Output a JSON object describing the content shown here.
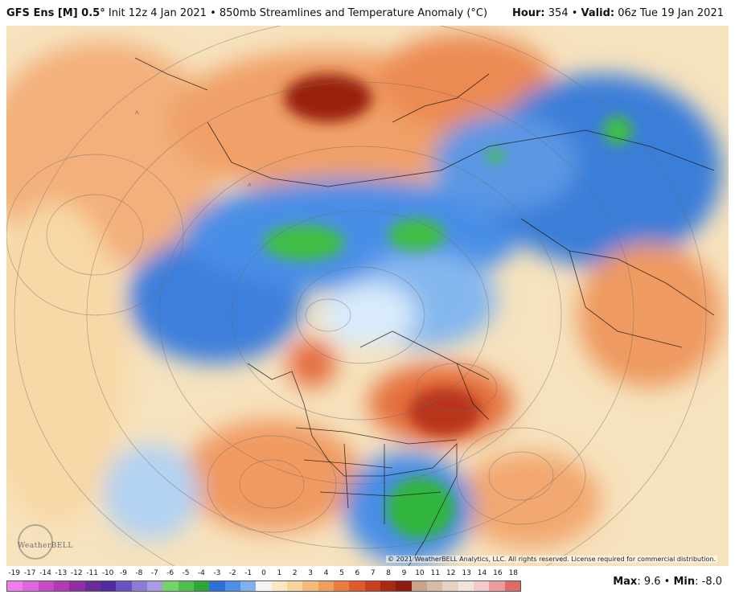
{
  "header": {
    "model": "GFS Ens [M] 0.5°",
    "init": "Init 12z 4 Jan 2021",
    "field": "850mb Streamlines and Temperature Anomaly (°C)",
    "hour_label": "Hour:",
    "hour_value": "354",
    "valid_label": "Valid:",
    "valid_value": "06z Tue 19 Jan 2021"
  },
  "map": {
    "copyright": "© 2021 WeatherBELL Analytics, LLC. All rights reserved. License required for commercial distribution.",
    "logo_text": "WeatherBELL"
  },
  "legend": {
    "ticks": [
      "-19",
      "-17",
      "-14",
      "-13",
      "-12",
      "-11",
      "-10",
      "-9",
      "-8",
      "-7",
      "-6",
      "-5",
      "-4",
      "-3",
      "-2",
      "-1",
      "0",
      "1",
      "2",
      "3",
      "4",
      "5",
      "6",
      "7",
      "8",
      "9",
      "10",
      "11",
      "12",
      "13",
      "14",
      "16",
      "18"
    ],
    "colors": [
      "#f07cf0",
      "#e066e0",
      "#c94ac9",
      "#b13bb6",
      "#8f2fa3",
      "#6a2a98",
      "#4f2aa0",
      "#6a52c4",
      "#8c7ad6",
      "#a99be0",
      "#74d36a",
      "#4cc04a",
      "#2ea53a",
      "#2e6fd8",
      "#4d8ee6",
      "#7eb1ee",
      "#f4f4f4",
      "#fbe8c2",
      "#f8d59c",
      "#f6bb7a",
      "#f29d5a",
      "#ec7c3e",
      "#e05a2a",
      "#c8401e",
      "#a92a14",
      "#8a1d0e",
      "#c9a48a",
      "#d8bba4",
      "#e7d2c2",
      "#f2e4d8",
      "#f5c9c9",
      "#ee9b9b",
      "#e06a6a"
    ],
    "max_label": "Max",
    "max_value": "9.6",
    "min_label": "Min",
    "min_value": "-8.0"
  }
}
